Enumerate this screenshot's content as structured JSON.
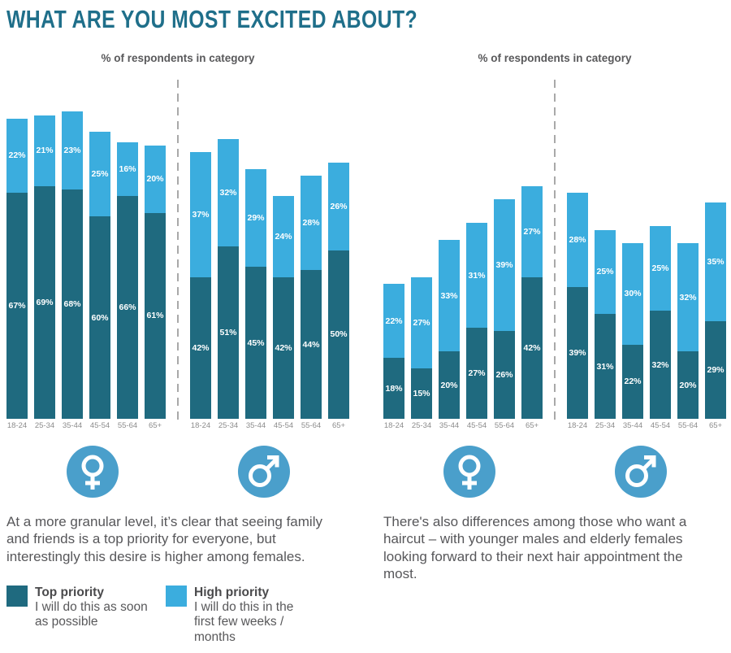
{
  "title": "WHAT ARE YOU MOST EXCITED ABOUT?",
  "colors": {
    "top_priority": "#1f6a7f",
    "high_priority": "#3badde",
    "icon_blue": "#4a9fcb",
    "title_teal": "#1f6f8a"
  },
  "chart_data": [
    {
      "type": "bar",
      "stacked": true,
      "unit": "%",
      "subtitle": "% of respondents in category",
      "categories": [
        "18-24",
        "25-34",
        "35-44",
        "45-54",
        "55-64",
        "65+"
      ],
      "ylim": [
        0,
        100
      ],
      "grid": false,
      "groups": [
        {
          "label": "female",
          "series": [
            {
              "name": "Top priority",
              "values": [
                67,
                69,
                68,
                60,
                66,
                61
              ]
            },
            {
              "name": "High priority",
              "values": [
                22,
                21,
                23,
                25,
                16,
                20
              ]
            }
          ]
        },
        {
          "label": "male",
          "series": [
            {
              "name": "Top priority",
              "values": [
                42,
                51,
                45,
                42,
                44,
                50
              ]
            },
            {
              "name": "High priority",
              "values": [
                37,
                32,
                29,
                24,
                28,
                26
              ]
            }
          ]
        }
      ],
      "caption": "At a more granular level, it’s clear that seeing family and friends is a top priority for everyone, but interestingly this desire is higher among females."
    },
    {
      "type": "bar",
      "stacked": true,
      "unit": "%",
      "subtitle": "% of respondents in category",
      "categories": [
        "18-24",
        "25-34",
        "35-44",
        "45-54",
        "55-64",
        "65+"
      ],
      "ylim": [
        0,
        100
      ],
      "grid": false,
      "groups": [
        {
          "label": "female",
          "series": [
            {
              "name": "Top priority",
              "values": [
                18,
                15,
                20,
                27,
                26,
                42
              ]
            },
            {
              "name": "High priority",
              "values": [
                22,
                27,
                33,
                31,
                39,
                27
              ]
            }
          ]
        },
        {
          "label": "male",
          "series": [
            {
              "name": "Top priority",
              "values": [
                39,
                31,
                22,
                32,
                20,
                29
              ]
            },
            {
              "name": "High priority",
              "values": [
                28,
                25,
                30,
                25,
                32,
                35
              ]
            }
          ]
        }
      ],
      "caption": "There's also differences among those who want a haircut – with younger males and elderly females looking forward to their next hair appointment the most."
    }
  ],
  "legend": {
    "items": [
      {
        "title": "Top priority",
        "description": "I will do this as soon as possible"
      },
      {
        "title": "High priority",
        "description": "I will do this in the first few weeks / months"
      }
    ]
  }
}
